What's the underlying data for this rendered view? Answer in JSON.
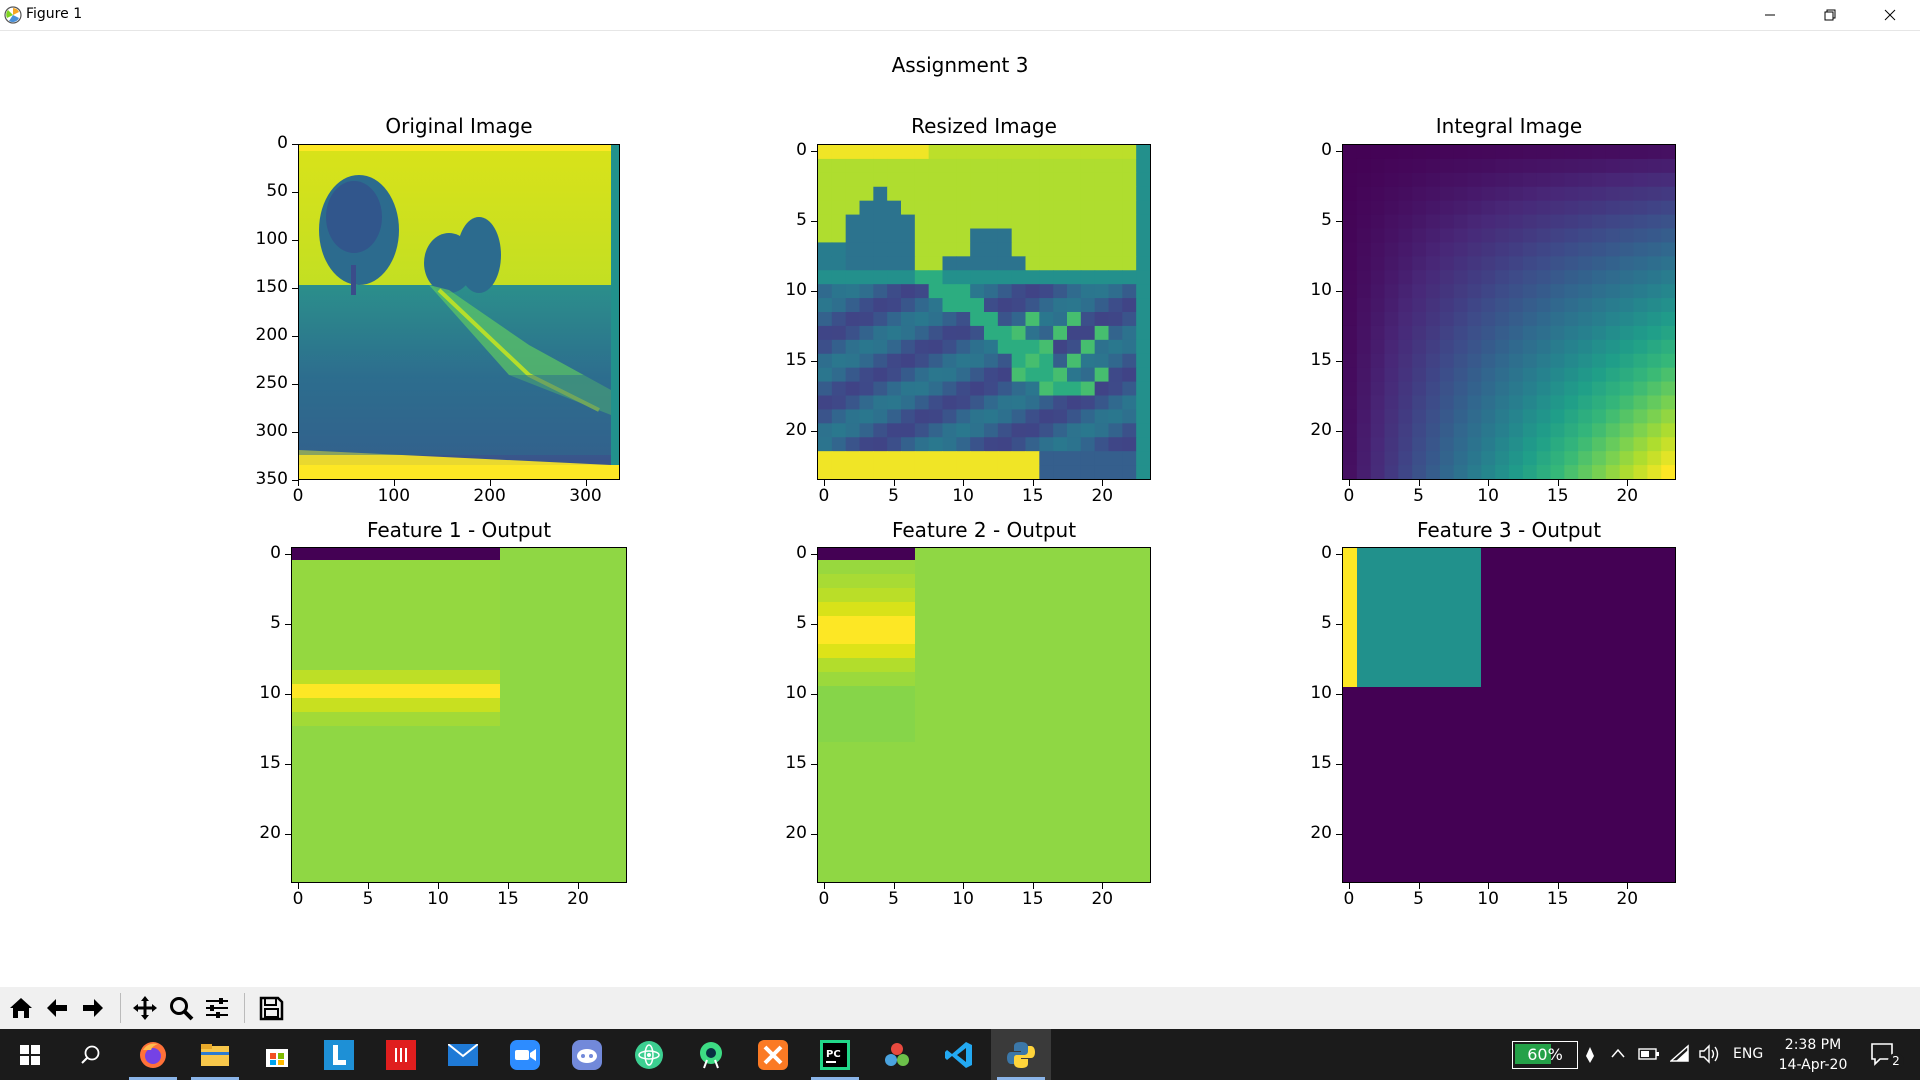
{
  "window": {
    "title": "Figure 1",
    "controls": [
      "minimize",
      "maximize",
      "close"
    ]
  },
  "figure": {
    "suptitle": "Assignment 3",
    "panels": [
      {
        "title": "Original Image",
        "x_ticks": [
          "0",
          "100",
          "200",
          "300"
        ],
        "y_ticks": [
          "0",
          "50",
          "100",
          "150",
          "200",
          "250",
          "300",
          "350"
        ],
        "colormap": "viridis",
        "content": "grayscale photo of trees and a field with a path"
      },
      {
        "title": "Resized Image",
        "x_ticks": [
          "0",
          "5",
          "10",
          "15",
          "20"
        ],
        "y_ticks": [
          "0",
          "5",
          "10",
          "15",
          "20"
        ],
        "colormap": "viridis",
        "grid_size": 24
      },
      {
        "title": "Integral Image",
        "x_ticks": [
          "0",
          "5",
          "10",
          "15",
          "20"
        ],
        "y_ticks": [
          "0",
          "5",
          "10",
          "15",
          "20"
        ],
        "colormap": "viridis",
        "grid_size": 24
      },
      {
        "title": "Feature 1 - Output",
        "x_ticks": [
          "0",
          "5",
          "10",
          "15",
          "20"
        ],
        "y_ticks": [
          "0",
          "5",
          "10",
          "15",
          "20"
        ],
        "colormap": "viridis",
        "grid_size": 24
      },
      {
        "title": "Feature 2 - Output",
        "x_ticks": [
          "0",
          "5",
          "10",
          "15",
          "20"
        ],
        "y_ticks": [
          "0",
          "5",
          "10",
          "15",
          "20"
        ],
        "colormap": "viridis",
        "grid_size": 24
      },
      {
        "title": "Feature 3 - Output",
        "x_ticks": [
          "0",
          "5",
          "10",
          "15",
          "20"
        ],
        "y_ticks": [
          "0",
          "5",
          "10",
          "15",
          "20"
        ],
        "colormap": "viridis",
        "grid_size": 24
      }
    ]
  },
  "toolbar": {
    "buttons": [
      "home-icon",
      "back-arrow-icon",
      "forward-arrow-icon",
      "pan-icon",
      "zoom-icon",
      "configure-subplots-icon",
      "save-icon"
    ]
  },
  "taskbar": {
    "apps": [
      "start-icon",
      "search-icon",
      "firefox-icon",
      "file-explorer-icon",
      "store-icon",
      "l-app-icon",
      "red-app-icon",
      "mail-icon",
      "zoom-icon",
      "discord-icon",
      "atom-icon",
      "android-studio-icon",
      "xampp-icon",
      "pycharm-icon",
      "davinci-icon",
      "vscode-icon",
      "python-figure-icon"
    ],
    "battery": "60%",
    "language": "ENG",
    "time": "2:38 PM",
    "date": "14-Apr-20",
    "notifications": "2"
  },
  "colors": {
    "viridis_dark": "#440154",
    "viridis_yellow": "#fde725",
    "viridis_green": "#8fd744",
    "viridis_teal": "#21918c",
    "taskbar_bg": "#1b1b1b"
  }
}
